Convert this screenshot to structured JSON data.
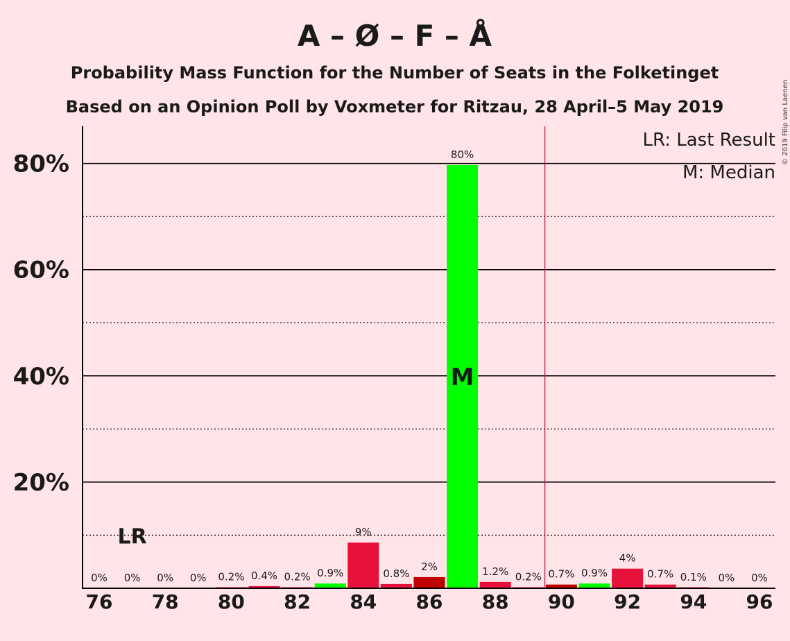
{
  "chart_data": {
    "type": "bar",
    "title": "A – Ø – F – Å",
    "subtitle_1": "Probability Mass Function for the Number of Seats in the Folketinget",
    "subtitle_2": "Based on an Opinion Poll by Voxmeter for Ritzau, 28 April–5 May 2019",
    "copyright": "© 2019 Filip van Laenen",
    "x": [
      76,
      77,
      78,
      79,
      80,
      81,
      82,
      83,
      84,
      85,
      86,
      87,
      88,
      89,
      90,
      91,
      92,
      93,
      94,
      95,
      96
    ],
    "values": [
      0,
      0,
      0,
      0,
      0.2,
      0.4,
      0.2,
      0.9,
      8.6,
      0.8,
      2.1,
      79.7,
      1.2,
      0.2,
      0.7,
      0.9,
      3.7,
      0.7,
      0.1,
      0,
      0
    ],
    "labels": [
      "0%",
      "0%",
      "0%",
      "0%",
      "0.2%",
      "0.4%",
      "0.2%",
      "0.9%",
      "9%",
      "0.8%",
      "2%",
      "80%",
      "1.2%",
      "0.2%",
      "0.7%",
      "0.9%",
      "4%",
      "0.7%",
      "0.1%",
      "0%",
      "0%"
    ],
    "bar_colors": [
      "#E8113C",
      "#E8113C",
      "#E8113C",
      "#E8113C",
      "#E8113C",
      "#E8113C",
      "#E8113C",
      "#00FF00",
      "#E8113C",
      "#E8113C",
      "#BF0000",
      "#00FF00",
      "#E8113C",
      "#E8113C",
      "#BF0000",
      "#00FF00",
      "#E8113C",
      "#E8113C",
      "#E8113C",
      "#E8113C",
      "#E8113C"
    ],
    "x_ticks": [
      76,
      78,
      80,
      82,
      84,
      86,
      88,
      90,
      92,
      94,
      96
    ],
    "x_tick_labels": [
      "76",
      "78",
      "80",
      "82",
      "84",
      "86",
      "88",
      "90",
      "92",
      "94",
      "96"
    ],
    "y_ticks_major": [
      20,
      40,
      60,
      80
    ],
    "y_tick_labels": [
      "20%",
      "40%",
      "60%",
      "80%"
    ],
    "y_ticks_minor": [
      10,
      30,
      50,
      70
    ],
    "ylim": [
      0,
      87
    ],
    "majority_line_x": 89.5,
    "last_result": {
      "x": 77,
      "label": "LR"
    },
    "median": {
      "x": 87,
      "label": "M"
    },
    "legend": [
      "LR: Last Result",
      "M: Median"
    ],
    "colors": {
      "background": "#FFE4E8",
      "majority_line": "#C0143C",
      "median_text": "#FFFFFF"
    },
    "grid": true,
    "legend_position": "top-right"
  }
}
